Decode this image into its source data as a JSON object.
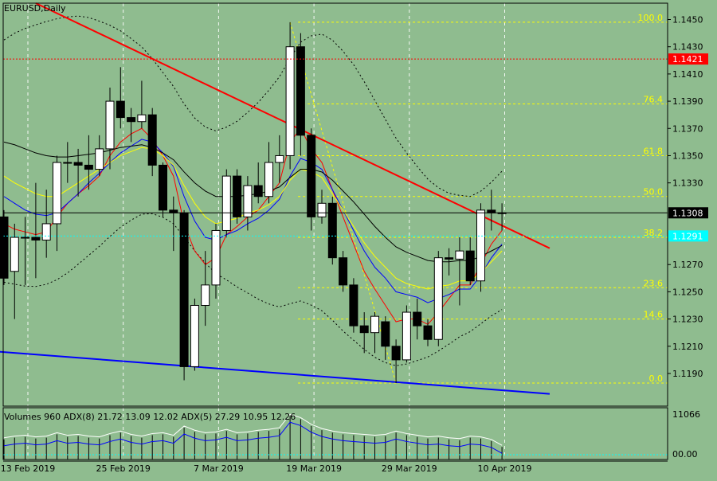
{
  "window": {
    "symbol_label": "EURUSD,Daily"
  },
  "indicator_label": "Volumes 960 ADX(8) 21.72 13.09 12.02 ADX(5) 27.29 10.95 12.26",
  "price_axis": {
    "ticks": [
      "1.1450",
      "1.1430",
      "1.1410",
      "1.1390",
      "1.1370",
      "1.1350",
      "1.1330",
      "1.1270",
      "1.1250",
      "1.1230",
      "1.1210",
      "1.1190"
    ],
    "tick_values": [
      1.145,
      1.143,
      1.141,
      1.139,
      1.137,
      1.135,
      1.133,
      1.127,
      1.125,
      1.123,
      1.121,
      1.119
    ],
    "current_price_label": "1.1308",
    "current_price": 1.1308,
    "resistance_label": "1.1421",
    "resistance_price": 1.1421,
    "cyan_label": "1.1291",
    "cyan_price": 1.1291
  },
  "volume_axis": {
    "top_label": "11066",
    "bottom_label": "00.00"
  },
  "time_axis": {
    "labels": [
      "13 Feb 2019",
      "25 Feb 2019",
      "7 Mar 2019",
      "19 Mar 2019",
      "29 Mar 2019",
      "10 Apr 2019"
    ]
  },
  "fibonacci": {
    "levels": [
      {
        "label": "100.0",
        "price": 1.1448
      },
      {
        "label": "76.4",
        "price": 1.1388
      },
      {
        "label": "61.8",
        "price": 1.135
      },
      {
        "label": "50.0",
        "price": 1.132
      },
      {
        "label": "38.2",
        "price": 1.129
      },
      {
        "label": "23.6",
        "price": 1.1253
      },
      {
        "label": "14.6",
        "price": 1.123
      },
      {
        "label": "0.0",
        "price": 1.1183
      }
    ]
  },
  "colors": {
    "background": "#8fbc8f",
    "bull_candle": "#ffffff",
    "bear_candle": "#000000",
    "trendline_down": "#ff0000",
    "trendline_up": "#0000ff",
    "fib": "#ffff00",
    "ma_red": "#ff0000",
    "ma_blue": "#0000ff",
    "ma_yellow": "#ffff00",
    "ma_black": "#000000",
    "grid": "#ffffff"
  },
  "chart_data": {
    "type": "candlestick",
    "symbol": "EURUSD",
    "timeframe": "Daily",
    "ylim": [
      1.1166,
      1.1462
    ],
    "candles": [
      {
        "o": 1.1305,
        "h": 1.131,
        "l": 1.1255,
        "c": 1.126
      },
      {
        "o": 1.1265,
        "h": 1.13,
        "l": 1.123,
        "c": 1.129
      },
      {
        "o": 1.129,
        "h": 1.1305,
        "l": 1.1255,
        "c": 1.129
      },
      {
        "o": 1.129,
        "h": 1.133,
        "l": 1.126,
        "c": 1.1288
      },
      {
        "o": 1.1288,
        "h": 1.1325,
        "l": 1.1275,
        "c": 1.13
      },
      {
        "o": 1.13,
        "h": 1.135,
        "l": 1.128,
        "c": 1.1345
      },
      {
        "o": 1.1345,
        "h": 1.136,
        "l": 1.133,
        "c": 1.1345
      },
      {
        "o": 1.1345,
        "h": 1.1355,
        "l": 1.132,
        "c": 1.1343
      },
      {
        "o": 1.1343,
        "h": 1.1365,
        "l": 1.1325,
        "c": 1.134
      },
      {
        "o": 1.134,
        "h": 1.1365,
        "l": 1.1335,
        "c": 1.1355
      },
      {
        "o": 1.1355,
        "h": 1.14,
        "l": 1.134,
        "c": 1.139
      },
      {
        "o": 1.139,
        "h": 1.1415,
        "l": 1.137,
        "c": 1.1378
      },
      {
        "o": 1.1378,
        "h": 1.1385,
        "l": 1.136,
        "c": 1.1375
      },
      {
        "o": 1.1375,
        "h": 1.1405,
        "l": 1.137,
        "c": 1.138
      },
      {
        "o": 1.138,
        "h": 1.1385,
        "l": 1.1335,
        "c": 1.1343
      },
      {
        "o": 1.1343,
        "h": 1.1345,
        "l": 1.1305,
        "c": 1.131
      },
      {
        "o": 1.131,
        "h": 1.132,
        "l": 1.128,
        "c": 1.1308
      },
      {
        "o": 1.1308,
        "h": 1.131,
        "l": 1.1185,
        "c": 1.1195
      },
      {
        "o": 1.1195,
        "h": 1.1245,
        "l": 1.1192,
        "c": 1.124
      },
      {
        "o": 1.124,
        "h": 1.128,
        "l": 1.1225,
        "c": 1.1255
      },
      {
        "o": 1.1255,
        "h": 1.13,
        "l": 1.1245,
        "c": 1.1295
      },
      {
        "o": 1.1295,
        "h": 1.134,
        "l": 1.129,
        "c": 1.1335
      },
      {
        "o": 1.1335,
        "h": 1.134,
        "l": 1.13,
        "c": 1.1305
      },
      {
        "o": 1.1305,
        "h": 1.1335,
        "l": 1.1295,
        "c": 1.1328
      },
      {
        "o": 1.1328,
        "h": 1.1345,
        "l": 1.1315,
        "c": 1.132
      },
      {
        "o": 1.132,
        "h": 1.136,
        "l": 1.1315,
        "c": 1.1345
      },
      {
        "o": 1.1345,
        "h": 1.1365,
        "l": 1.133,
        "c": 1.135
      },
      {
        "o": 1.135,
        "h": 1.1448,
        "l": 1.134,
        "c": 1.143
      },
      {
        "o": 1.143,
        "h": 1.144,
        "l": 1.135,
        "c": 1.1365
      },
      {
        "o": 1.1365,
        "h": 1.137,
        "l": 1.1295,
        "c": 1.1305
      },
      {
        "o": 1.1305,
        "h": 1.1325,
        "l": 1.13,
        "c": 1.1315
      },
      {
        "o": 1.1315,
        "h": 1.132,
        "l": 1.127,
        "c": 1.1275
      },
      {
        "o": 1.1275,
        "h": 1.128,
        "l": 1.125,
        "c": 1.1255
      },
      {
        "o": 1.1255,
        "h": 1.126,
        "l": 1.122,
        "c": 1.1225
      },
      {
        "o": 1.1225,
        "h": 1.1235,
        "l": 1.1205,
        "c": 1.122
      },
      {
        "o": 1.122,
        "h": 1.1235,
        "l": 1.1205,
        "c": 1.1232
      },
      {
        "o": 1.1228,
        "h": 1.1232,
        "l": 1.12,
        "c": 1.121
      },
      {
        "o": 1.121,
        "h": 1.1215,
        "l": 1.1183,
        "c": 1.12
      },
      {
        "o": 1.12,
        "h": 1.124,
        "l": 1.1198,
        "c": 1.1235
      },
      {
        "o": 1.1235,
        "h": 1.1245,
        "l": 1.1215,
        "c": 1.1225
      },
      {
        "o": 1.1225,
        "h": 1.123,
        "l": 1.121,
        "c": 1.1215
      },
      {
        "o": 1.1215,
        "h": 1.128,
        "l": 1.121,
        "c": 1.1275
      },
      {
        "o": 1.1275,
        "h": 1.1282,
        "l": 1.1262,
        "c": 1.1274
      },
      {
        "o": 1.1274,
        "h": 1.129,
        "l": 1.124,
        "c": 1.128
      },
      {
        "o": 1.128,
        "h": 1.129,
        "l": 1.1255,
        "c": 1.1258
      },
      {
        "o": 1.1258,
        "h": 1.1315,
        "l": 1.125,
        "c": 1.131
      },
      {
        "o": 1.131,
        "h": 1.1325,
        "l": 1.1295,
        "c": 1.1308
      },
      {
        "o": 1.1308,
        "h": 1.1315,
        "l": 1.1295,
        "c": 1.1308
      }
    ],
    "volume": [
      2400,
      2600,
      2700,
      2500,
      2600,
      3000,
      2700,
      2800,
      2600,
      2500,
      2900,
      3200,
      2800,
      2600,
      2900,
      3000,
      2700,
      3800,
      3300,
      3000,
      3100,
      3400,
      3000,
      3100,
      3300,
      3400,
      3600,
      5200,
      4800,
      4000,
      3500,
      3200,
      3000,
      2900,
      2800,
      2700,
      2800,
      3200,
      2900,
      2700,
      2500,
      2600,
      2400,
      2300,
      2600,
      2500,
      2200,
      1500
    ],
    "series": [
      {
        "name": "MA red",
        "values": [
          1.13,
          1.1296,
          1.1294,
          1.1292,
          1.1294,
          1.1305,
          1.1315,
          1.1322,
          1.1328,
          1.1335,
          1.135,
          1.136,
          1.1366,
          1.137,
          1.1362,
          1.135,
          1.1335,
          1.13,
          1.128,
          1.127,
          1.1275,
          1.1292,
          1.1298,
          1.1305,
          1.131,
          1.132,
          1.133,
          1.136,
          1.137,
          1.1355,
          1.1345,
          1.1325,
          1.1305,
          1.1285,
          1.1265,
          1.1252,
          1.124,
          1.1228,
          1.123,
          1.123,
          1.1226,
          1.1235,
          1.1245,
          1.1255,
          1.1255,
          1.127,
          1.1285,
          1.1295
        ]
      },
      {
        "name": "MA blue",
        "values": [
          1.132,
          1.1315,
          1.131,
          1.1307,
          1.1306,
          1.1308,
          1.1315,
          1.1322,
          1.133,
          1.1337,
          1.1345,
          1.1352,
          1.1357,
          1.1362,
          1.136,
          1.1352,
          1.1342,
          1.132,
          1.1302,
          1.129,
          1.1288,
          1.1292,
          1.1295,
          1.13,
          1.1304,
          1.131,
          1.1318,
          1.1335,
          1.1348,
          1.1345,
          1.134,
          1.1325,
          1.131,
          1.1295,
          1.128,
          1.1268,
          1.126,
          1.125,
          1.1248,
          1.1246,
          1.1242,
          1.1245,
          1.1248,
          1.1252,
          1.1252,
          1.1262,
          1.1275,
          1.1285
        ]
      },
      {
        "name": "MA yellow",
        "values": [
          1.1335,
          1.133,
          1.1326,
          1.1322,
          1.132,
          1.132,
          1.1325,
          1.133,
          1.1335,
          1.134,
          1.1345,
          1.135,
          1.1353,
          1.1356,
          1.1355,
          1.135,
          1.1343,
          1.1328,
          1.1315,
          1.1305,
          1.13,
          1.1302,
          1.1304,
          1.1308,
          1.131,
          1.1314,
          1.132,
          1.1332,
          1.134,
          1.1338,
          1.1334,
          1.1322,
          1.131,
          1.1298,
          1.1286,
          1.1276,
          1.1268,
          1.126,
          1.1256,
          1.1254,
          1.1252,
          1.1254,
          1.1255,
          1.1258,
          1.1258,
          1.1264,
          1.1272,
          1.128
        ]
      },
      {
        "name": "MA black",
        "values": [
          1.136,
          1.1358,
          1.1355,
          1.1352,
          1.135,
          1.1349,
          1.1349,
          1.135,
          1.1351,
          1.1352,
          1.1354,
          1.1356,
          1.1357,
          1.1358,
          1.1356,
          1.1352,
          1.1347,
          1.1338,
          1.133,
          1.1324,
          1.132,
          1.132,
          1.132,
          1.1321,
          1.1322,
          1.1324,
          1.1327,
          1.1334,
          1.134,
          1.134,
          1.1338,
          1.1332,
          1.1324,
          1.1316,
          1.1307,
          1.1298,
          1.129,
          1.1283,
          1.1279,
          1.1276,
          1.1273,
          1.1272,
          1.1272,
          1.1273,
          1.1273,
          1.1276,
          1.128,
          1.1284
        ]
      }
    ],
    "trendlines": [
      {
        "name": "down",
        "from": {
          "bar": 3.0,
          "price": 1.1462
        },
        "to": {
          "bar": 51.5,
          "price": 1.1282
        }
      },
      {
        "name": "up",
        "from": {
          "bar": -0.5,
          "price": 1.1206
        },
        "to": {
          "bar": 51.5,
          "price": 1.1175
        }
      }
    ]
  }
}
